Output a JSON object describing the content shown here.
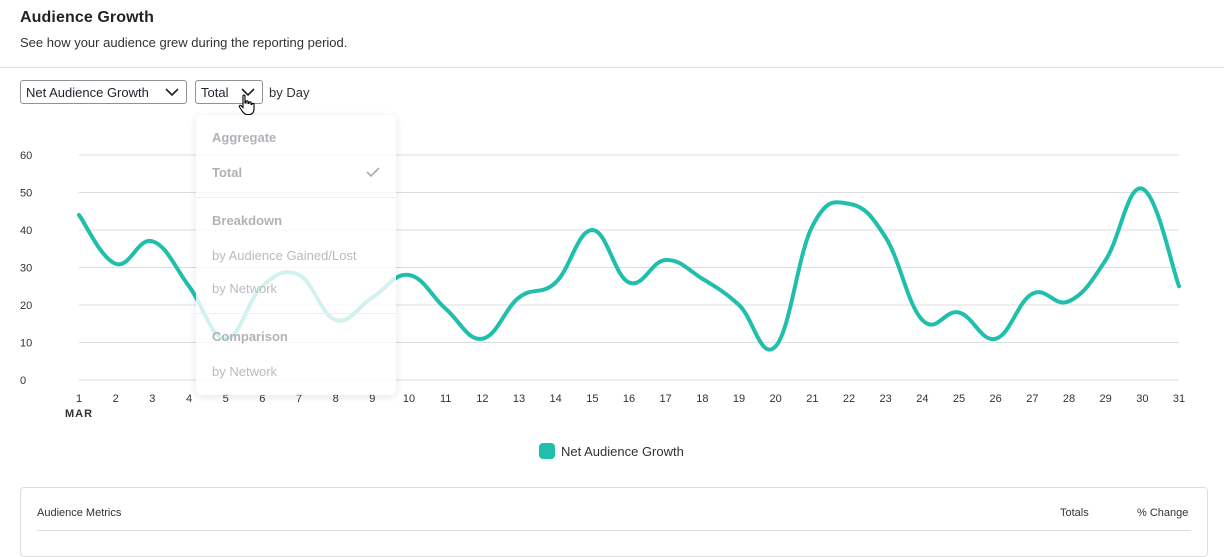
{
  "header": {
    "title": "Audience Growth",
    "subtitle": "See how your audience grew during the reporting period."
  },
  "controls": {
    "metric_select": "Net Audience Growth",
    "view_select": "Total",
    "interval_text": "by Day"
  },
  "dropdown": {
    "sections": [
      {
        "heading": "Aggregate",
        "items": [
          {
            "label": "Total",
            "selected": true
          }
        ]
      },
      {
        "heading": "Breakdown",
        "items": [
          {
            "label": "by Audience Gained/Lost"
          },
          {
            "label": "by Network"
          }
        ]
      },
      {
        "heading": "Comparison",
        "items": [
          {
            "label": "by Network"
          }
        ]
      }
    ]
  },
  "colors": {
    "series": "#1fbfab",
    "grid": "#dcdde0"
  },
  "chart_data": {
    "type": "line",
    "x": [
      "1",
      "2",
      "3",
      "4",
      "5",
      "6",
      "7",
      "8",
      "9",
      "10",
      "11",
      "12",
      "13",
      "14",
      "15",
      "16",
      "17",
      "18",
      "19",
      "20",
      "21",
      "22",
      "23",
      "24",
      "25",
      "26",
      "27",
      "28",
      "29",
      "30",
      "31"
    ],
    "x_sublabel": "MAR",
    "series": [
      {
        "name": "Net Audience Growth",
        "values": [
          44,
          31,
          37,
          25,
          11,
          25,
          28,
          16,
          22,
          28,
          19,
          11,
          22,
          26,
          40,
          26,
          32,
          27,
          20,
          9,
          41,
          47,
          38,
          16,
          18,
          11,
          23,
          21,
          32,
          51,
          25
        ]
      }
    ],
    "ylim": [
      0,
      60
    ],
    "yticks": [
      0,
      10,
      20,
      30,
      40,
      50,
      60
    ],
    "grid": true,
    "legend": "bottom-center"
  },
  "legend": {
    "label": "Net Audience Growth"
  },
  "table": {
    "title": "Audience Metrics",
    "col_totals": "Totals",
    "col_change": "% Change"
  }
}
